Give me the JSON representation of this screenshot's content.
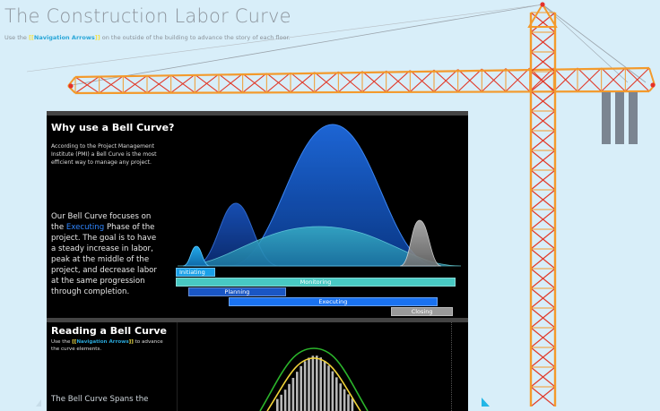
{
  "page": {
    "title": "The Construction Labor Curve",
    "subtitle_before": "Use the ",
    "subtitle_nav": "Navigation Arrows",
    "subtitle_after": " on the outside of the building to advance the story of each floor.",
    "nav_brackets": "[["
  },
  "panel1": {
    "title": "Why use a Bell Curve?",
    "pmi_text": "According to the Project Management Institute (PMI) a Bell Curve is the most efficient way to manage any project.",
    "focus_before": "Our Bell Curve focuses on the ",
    "focus_highlight": "Executing",
    "focus_after": " Phase of the project. The goal is to have a steady increase in labor, peak at the middle of the project, and decrease labor at the same progression through completion.",
    "phases": [
      {
        "label": "Initiating",
        "start": 0.0,
        "end": 0.135,
        "color": "#1aa0e8"
      },
      {
        "label": "Monitoring",
        "start": 0.0,
        "end": 1.0,
        "color": "#48c9c3"
      },
      {
        "label": "Planning",
        "start": 0.045,
        "end": 0.39,
        "color": "#1a56c4"
      },
      {
        "label": "Executing",
        "start": 0.19,
        "end": 0.935,
        "color": "#1a72f0"
      },
      {
        "label": "Closing",
        "start": 0.775,
        "end": 0.99,
        "color": "#9a9a9a"
      }
    ]
  },
  "panel2": {
    "title": "Reading a Bell Curve",
    "nav_before": "Use the ",
    "nav_label": "Navigation Arrows",
    "nav_after": " to advance the curve elements.",
    "spans_text": "The Bell Curve Spans the"
  },
  "colors": {
    "background": "#d8eef9",
    "crane": "#f39a2c",
    "crane_cross": "#e13a2a",
    "counterweight": "#7b8591",
    "executing": "#2f86ff",
    "nav_link": "#2aa7d8",
    "nav_bracket": "#f3e24a"
  }
}
